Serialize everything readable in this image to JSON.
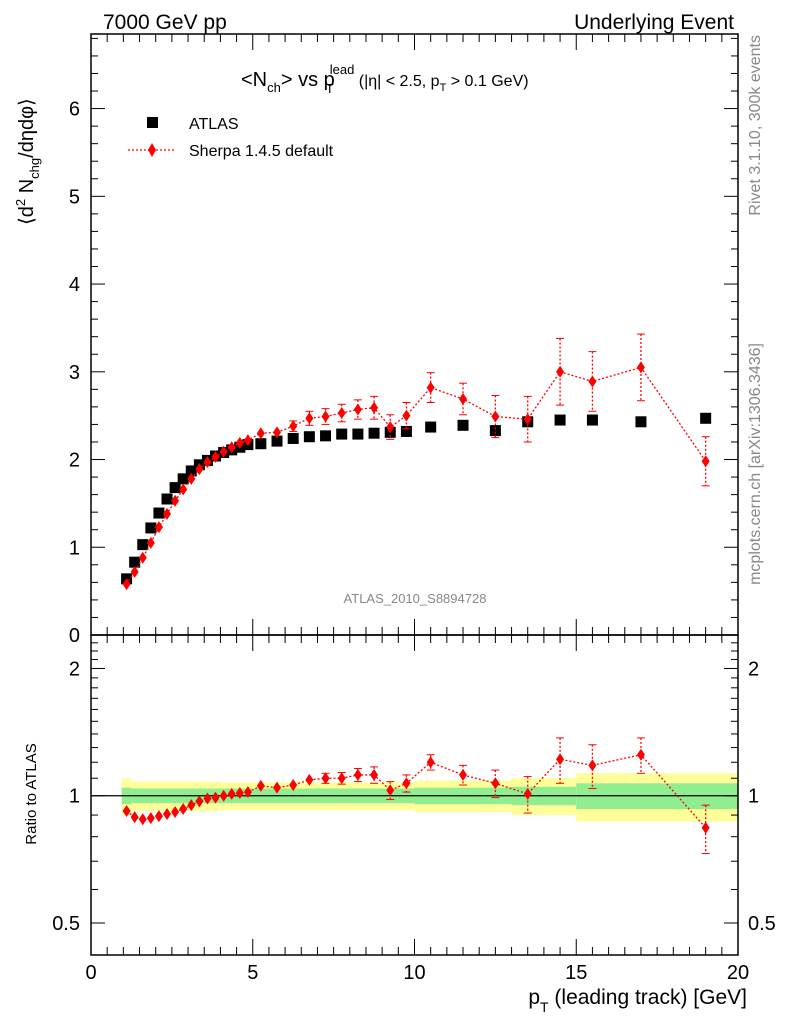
{
  "header": {
    "left": "7000 GeV pp",
    "right": "Underlying Event"
  },
  "side": {
    "top": "Rivet 3.1.10,  300k events",
    "bottom": "mcplots.cern.ch [arXiv:1306.3436]"
  },
  "chart_data": [
    {
      "type": "scatter",
      "title": "<N_ch> vs p_T^lead (|η| < 2.5, p_T > 0.1 GeV)",
      "title_parts": {
        "pre": "<N",
        "sub_ch": "ch",
        "mid": "> vs p",
        "sub_T": "T",
        "sup_lead": "lead",
        "cond_a": " (|η| < 2.5, p",
        "cond_sub": "T",
        "cond_b": " > 0.1 GeV)"
      },
      "ylabel": "⟨d² N_chg/dηdφ⟩",
      "ylabel_parts": {
        "a": "⟨d",
        "sup2": "2",
        "b": " N",
        "sub_chg": "chg",
        "c": "/dηdφ⟩"
      },
      "xlim": [
        0,
        20
      ],
      "ylim": [
        0,
        6.85
      ],
      "y_ticks": [
        0,
        1,
        2,
        3,
        4,
        5,
        6
      ],
      "watermark": "ATLAS_2010_S8894728",
      "legend": {
        "placement": "top-left",
        "entries": [
          "ATLAS",
          "Sherpa 1.4.5 default"
        ]
      },
      "series": [
        {
          "name": "ATLAS",
          "marker": "square",
          "color": "#000000",
          "x": [
            1.1,
            1.35,
            1.6,
            1.85,
            2.1,
            2.35,
            2.6,
            2.85,
            3.1,
            3.35,
            3.6,
            3.85,
            4.1,
            4.35,
            4.6,
            4.85,
            5.25,
            5.75,
            6.25,
            6.75,
            7.25,
            7.75,
            8.25,
            8.75,
            9.25,
            9.75,
            10.5,
            11.5,
            12.5,
            13.5,
            14.5,
            15.5,
            17.0,
            19.0
          ],
          "y": [
            0.64,
            0.83,
            1.03,
            1.22,
            1.39,
            1.55,
            1.68,
            1.78,
            1.87,
            1.94,
            1.99,
            2.04,
            2.08,
            2.11,
            2.14,
            2.17,
            2.18,
            2.21,
            2.24,
            2.26,
            2.27,
            2.29,
            2.29,
            2.3,
            2.31,
            2.32,
            2.37,
            2.39,
            2.33,
            2.43,
            2.45,
            2.45,
            2.43,
            2.47
          ]
        },
        {
          "name": "Sherpa 1.4.5 default",
          "marker": "diamond",
          "line": "dotted",
          "color": "#ff0000",
          "x": [
            1.1,
            1.35,
            1.6,
            1.85,
            2.1,
            2.35,
            2.6,
            2.85,
            3.1,
            3.35,
            3.6,
            3.85,
            4.1,
            4.35,
            4.6,
            4.85,
            5.25,
            5.75,
            6.25,
            6.75,
            7.25,
            7.75,
            8.25,
            8.75,
            9.25,
            9.75,
            10.5,
            11.5,
            12.5,
            13.5,
            14.5,
            15.5,
            17.0,
            19.0
          ],
          "y": [
            0.58,
            0.72,
            0.88,
            1.05,
            1.23,
            1.38,
            1.53,
            1.66,
            1.78,
            1.89,
            1.97,
            2.03,
            2.09,
            2.14,
            2.19,
            2.22,
            2.3,
            2.31,
            2.38,
            2.47,
            2.49,
            2.53,
            2.57,
            2.59,
            2.37,
            2.5,
            2.82,
            2.69,
            2.49,
            2.46,
            3.0,
            2.89,
            3.05,
            1.98
          ],
          "yerr": [
            0.02,
            0.02,
            0.02,
            0.02,
            0.02,
            0.02,
            0.02,
            0.02,
            0.02,
            0.02,
            0.02,
            0.02,
            0.03,
            0.03,
            0.03,
            0.03,
            0.04,
            0.05,
            0.06,
            0.08,
            0.09,
            0.1,
            0.11,
            0.13,
            0.14,
            0.15,
            0.17,
            0.18,
            0.24,
            0.26,
            0.38,
            0.34,
            0.38,
            0.28
          ]
        }
      ]
    },
    {
      "type": "scatter",
      "ylabel": "Ratio to ATLAS",
      "xlabel": "p_T (leading track) [GeV]",
      "xlabel_parts": {
        "a": "p",
        "sub_T": "T",
        "b": " (leading track) [GeV]"
      },
      "xlim": [
        0,
        20
      ],
      "x_ticks": [
        0,
        5,
        10,
        15,
        20
      ],
      "ylim": [
        0.42,
        2.4
      ],
      "y_scale": "log",
      "y_ticks": [
        0.5,
        1,
        2
      ],
      "reference_line": 1,
      "bands": {
        "inner_color": "#90ee90",
        "outer_color": "#ffff99",
        "x_edges": [
          0.95,
          1.25,
          4.0,
          10.0,
          13.0,
          15.0,
          20.0
        ],
        "inner_half": [
          0.045,
          0.04,
          0.04,
          0.045,
          0.05,
          0.07
        ],
        "outer_half": [
          0.1,
          0.08,
          0.075,
          0.085,
          0.1,
          0.13
        ]
      },
      "series": [
        {
          "name": "Sherpa 1.4.5 default",
          "marker": "diamond",
          "line": "dotted",
          "color": "#ff0000",
          "x": [
            1.1,
            1.35,
            1.6,
            1.85,
            2.1,
            2.35,
            2.6,
            2.85,
            3.1,
            3.35,
            3.6,
            3.85,
            4.1,
            4.35,
            4.6,
            4.85,
            5.25,
            5.75,
            6.25,
            6.75,
            7.25,
            7.75,
            8.25,
            8.75,
            9.25,
            9.75,
            10.5,
            11.5,
            12.5,
            13.5,
            14.5,
            15.5,
            17.0,
            19.0
          ],
          "y": [
            0.92,
            0.89,
            0.88,
            0.885,
            0.895,
            0.905,
            0.915,
            0.93,
            0.95,
            0.97,
            0.985,
            0.99,
            1.0,
            1.01,
            1.015,
            1.02,
            1.055,
            1.045,
            1.06,
            1.09,
            1.1,
            1.1,
            1.12,
            1.12,
            1.03,
            1.07,
            1.2,
            1.12,
            1.07,
            1.01,
            1.22,
            1.18,
            1.25,
            0.84
          ],
          "yerr": [
            0.01,
            0.01,
            0.01,
            0.01,
            0.01,
            0.01,
            0.01,
            0.01,
            0.01,
            0.01,
            0.01,
            0.01,
            0.01,
            0.01,
            0.01,
            0.01,
            0.015,
            0.015,
            0.02,
            0.025,
            0.03,
            0.035,
            0.04,
            0.05,
            0.05,
            0.05,
            0.05,
            0.06,
            0.08,
            0.1,
            0.15,
            0.14,
            0.12,
            0.11
          ]
        }
      ]
    }
  ]
}
